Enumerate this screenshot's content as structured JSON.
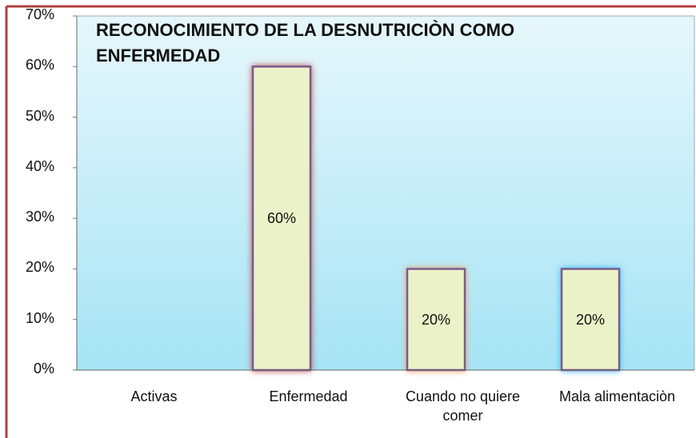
{
  "chart_data": {
    "type": "bar",
    "title": "RECONOCIMIENTO DE LA DESNUTRICIÒN COMO ENFERMEDAD",
    "categories": [
      "Activas",
      "Enfermedad",
      "Cuando no quiere comer",
      "Mala alimentaciòn"
    ],
    "values": [
      0,
      60,
      20,
      20
    ],
    "value_labels": [
      null,
      "60%",
      "20%",
      "20%"
    ],
    "color": "#ebf2c8",
    "ylim": [
      0,
      70
    ],
    "yticks": [
      {
        "value": 0,
        "label": "0%"
      },
      {
        "value": 10,
        "label": "10%"
      },
      {
        "value": 20,
        "label": "20%"
      },
      {
        "value": 30,
        "label": "30%"
      },
      {
        "value": 40,
        "label": "40%"
      },
      {
        "value": 50,
        "label": "50%"
      },
      {
        "value": 60,
        "label": "60%"
      },
      {
        "value": 70,
        "label": "70%"
      }
    ]
  }
}
